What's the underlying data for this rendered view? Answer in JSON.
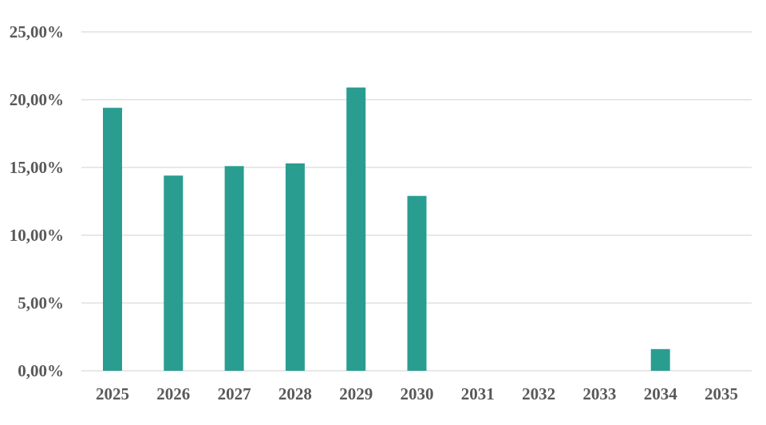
{
  "chart_data": {
    "type": "bar",
    "categories": [
      "2025",
      "2026",
      "2027",
      "2028",
      "2029",
      "2030",
      "2031",
      "2032",
      "2033",
      "2034",
      "2035"
    ],
    "values": [
      19.4,
      14.4,
      15.1,
      15.3,
      20.9,
      12.9,
      0,
      0,
      0,
      1.6,
      0
    ],
    "title": "",
    "xlabel": "",
    "ylabel": "",
    "ylim": [
      0,
      25
    ],
    "yticks": [
      0,
      5,
      10,
      15,
      20,
      25
    ],
    "ytick_labels": [
      "0,00%",
      "5,00%",
      "10,00%",
      "15,00%",
      "20,00%",
      "25,00%"
    ],
    "grid": true,
    "legend": "none",
    "colors": {
      "bar": "#2a9d91",
      "grid": "#d9d9d9",
      "text": "#595959"
    }
  }
}
